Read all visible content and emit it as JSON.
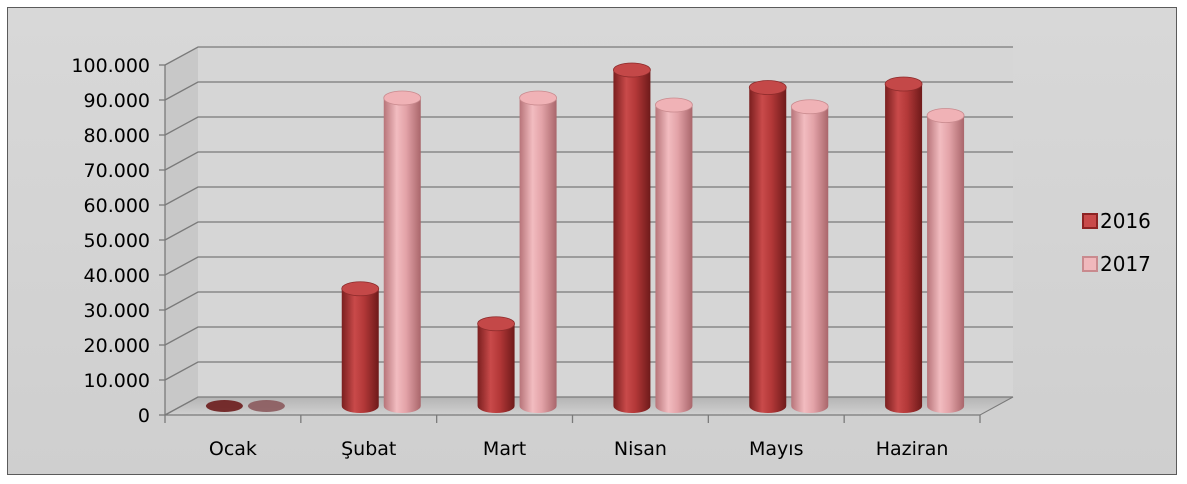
{
  "chart_data": {
    "type": "bar",
    "title": "",
    "xlabel": "",
    "ylabel": "",
    "categories": [
      "Ocak",
      "Şubat",
      "Mart",
      "Nisan",
      "Mayıs",
      "Haziran"
    ],
    "series": [
      {
        "name": "2016",
        "values": [
          0,
          33500,
          23500,
          96000,
          91000,
          92000
        ],
        "color": "#b23a3a"
      },
      {
        "name": "2017",
        "values": [
          0,
          88000,
          88000,
          86000,
          85500,
          83000
        ],
        "color": "#e3a0a4"
      }
    ],
    "ylim": [
      0,
      100000
    ],
    "yticks": [
      "0",
      "10.000",
      "20.000",
      "30.000",
      "40.000",
      "50.000",
      "60.000",
      "70.000",
      "80.000",
      "90.000",
      "100.000"
    ],
    "grid": true,
    "legend_position": "right"
  }
}
